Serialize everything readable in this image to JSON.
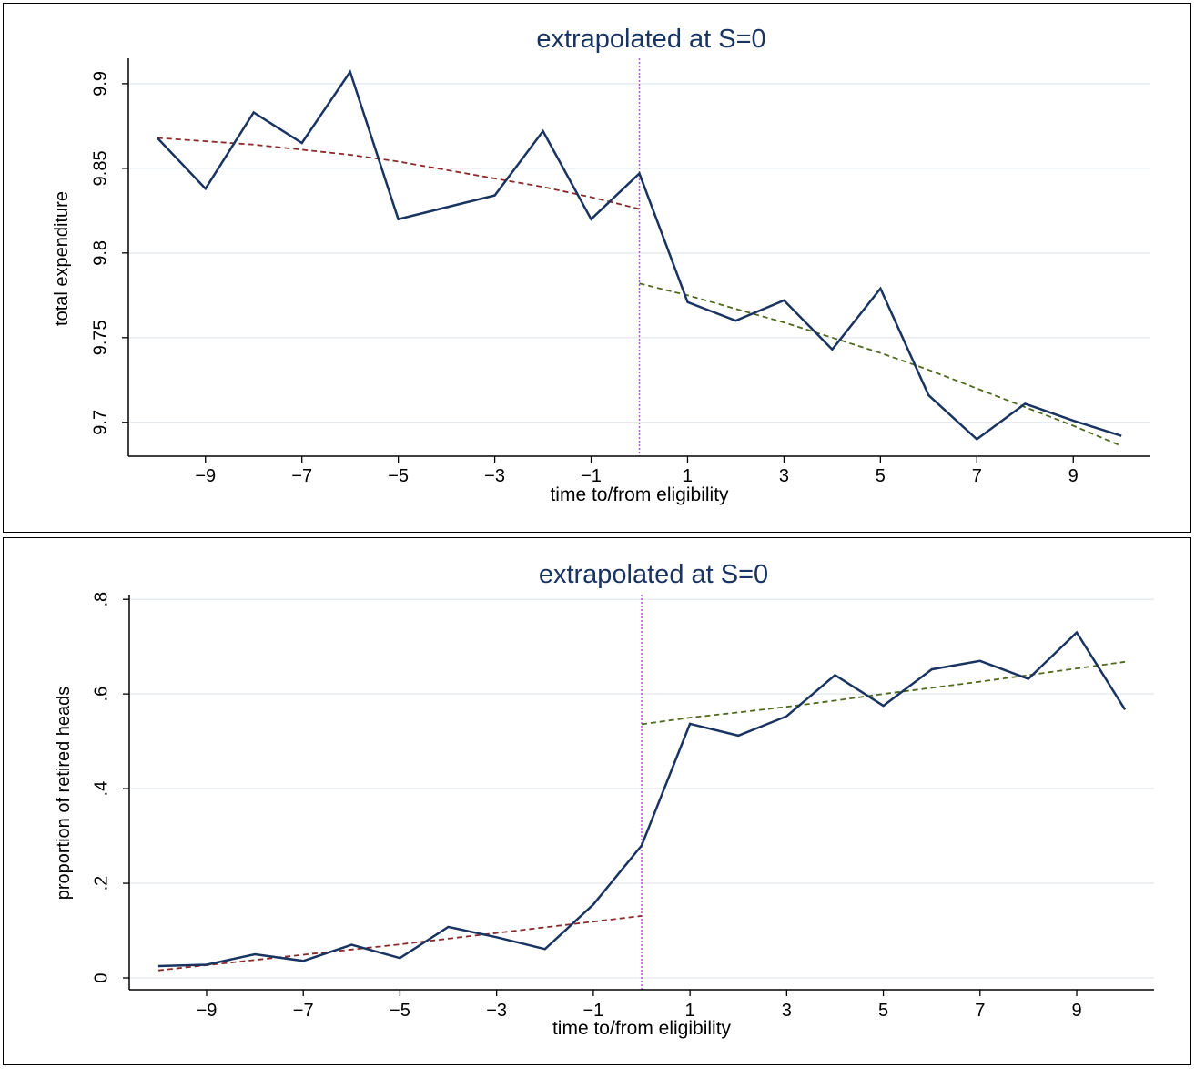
{
  "chart_data": [
    {
      "type": "line",
      "title": "extrapolated at S=0",
      "xlabel": "time to/from eligibility",
      "ylabel": "total expenditure",
      "xlim": [
        -10.6,
        10.6
      ],
      "ylim": [
        9.68,
        9.915
      ],
      "xticks": [
        -9,
        -7,
        -5,
        -3,
        -1,
        1,
        3,
        5,
        7,
        9
      ],
      "xtick_labels": [
        "−9",
        "−7",
        "−5",
        "−3",
        "−1",
        "1",
        "3",
        "5",
        "7",
        "9"
      ],
      "yticks": [
        9.7,
        9.75,
        9.8,
        9.85,
        9.9
      ],
      "ytick_labels": [
        "9.7",
        "9.75",
        "9.8",
        "9.85",
        "9.9"
      ],
      "grid": true,
      "cutoff_x": 0,
      "colors": {
        "observed": "#1a3461",
        "fit_before": "#8b2a2a",
        "fit_after": "#4f6a1f",
        "cutoff": "#b05ac8"
      },
      "series": [
        {
          "role": "observed",
          "x": [
            -10,
            -9,
            -8,
            -7,
            -6,
            -5,
            -4,
            -3,
            -2,
            -1,
            0,
            1,
            2,
            3,
            4,
            5,
            6,
            7,
            8,
            9,
            10
          ],
          "y": [
            9.868,
            9.838,
            9.883,
            9.865,
            9.907,
            9.82,
            9.827,
            9.834,
            9.872,
            9.82,
            9.847,
            9.771,
            9.76,
            9.772,
            9.743,
            9.779,
            9.716,
            9.69,
            9.711,
            9.701,
            9.692
          ]
        },
        {
          "role": "fit_before",
          "x": [
            -10,
            -9,
            -8,
            -7,
            -6,
            -5,
            -4,
            -3,
            -2,
            -1,
            0
          ],
          "y": [
            9.868,
            9.866,
            9.864,
            9.861,
            9.858,
            9.854,
            9.849,
            9.844,
            9.839,
            9.833,
            9.826
          ]
        },
        {
          "role": "fit_after",
          "x": [
            0,
            1,
            2,
            3,
            4,
            5,
            6,
            7,
            8,
            9,
            10
          ],
          "y": [
            9.782,
            9.775,
            9.767,
            9.759,
            9.75,
            9.741,
            9.731,
            9.72,
            9.709,
            9.698,
            9.686
          ]
        }
      ]
    },
    {
      "type": "line",
      "title": "extrapolated at S=0",
      "xlabel": "time to/from eligibility",
      "ylabel": "proportion of retired heads",
      "xlim": [
        -10.6,
        10.6
      ],
      "ylim": [
        -0.025,
        0.81
      ],
      "xticks": [
        -9,
        -7,
        -5,
        -3,
        -1,
        1,
        3,
        5,
        7,
        9
      ],
      "xtick_labels": [
        "−9",
        "−7",
        "−5",
        "−3",
        "−1",
        "1",
        "3",
        "5",
        "7",
        "9"
      ],
      "yticks": [
        0,
        0.2,
        0.4,
        0.6,
        0.8
      ],
      "ytick_labels": [
        "0",
        ".2",
        ".4",
        ".6",
        ".8"
      ],
      "grid": true,
      "cutoff_x": 0,
      "colors": {
        "observed": "#1a3461",
        "fit_before": "#8b2a2a",
        "fit_after": "#4f6a1f",
        "cutoff": "#b05ac8"
      },
      "series": [
        {
          "role": "observed",
          "x": [
            -10,
            -9,
            -8,
            -7,
            -6,
            -5,
            -4,
            -3,
            -2,
            -1,
            0,
            1,
            2,
            3,
            4,
            5,
            6,
            7,
            8,
            9,
            10
          ],
          "y": [
            0.025,
            0.028,
            0.05,
            0.036,
            0.07,
            0.042,
            0.108,
            0.086,
            0.061,
            0.155,
            0.28,
            0.537,
            0.512,
            0.553,
            0.64,
            0.575,
            0.652,
            0.67,
            0.632,
            0.73,
            0.567
          ]
        },
        {
          "role": "fit_before",
          "x": [
            -10,
            -9,
            -8,
            -7,
            -6,
            -5,
            -4,
            -3,
            -2,
            -1,
            0
          ],
          "y": [
            0.016,
            0.027,
            0.038,
            0.049,
            0.06,
            0.071,
            0.083,
            0.095,
            0.107,
            0.119,
            0.131
          ]
        },
        {
          "role": "fit_after",
          "x": [
            0,
            1,
            2,
            3,
            4,
            5,
            6,
            7,
            8,
            9,
            10
          ],
          "y": [
            0.536,
            0.55,
            0.561,
            0.573,
            0.586,
            0.6,
            0.613,
            0.626,
            0.64,
            0.654,
            0.668
          ]
        }
      ]
    }
  ]
}
